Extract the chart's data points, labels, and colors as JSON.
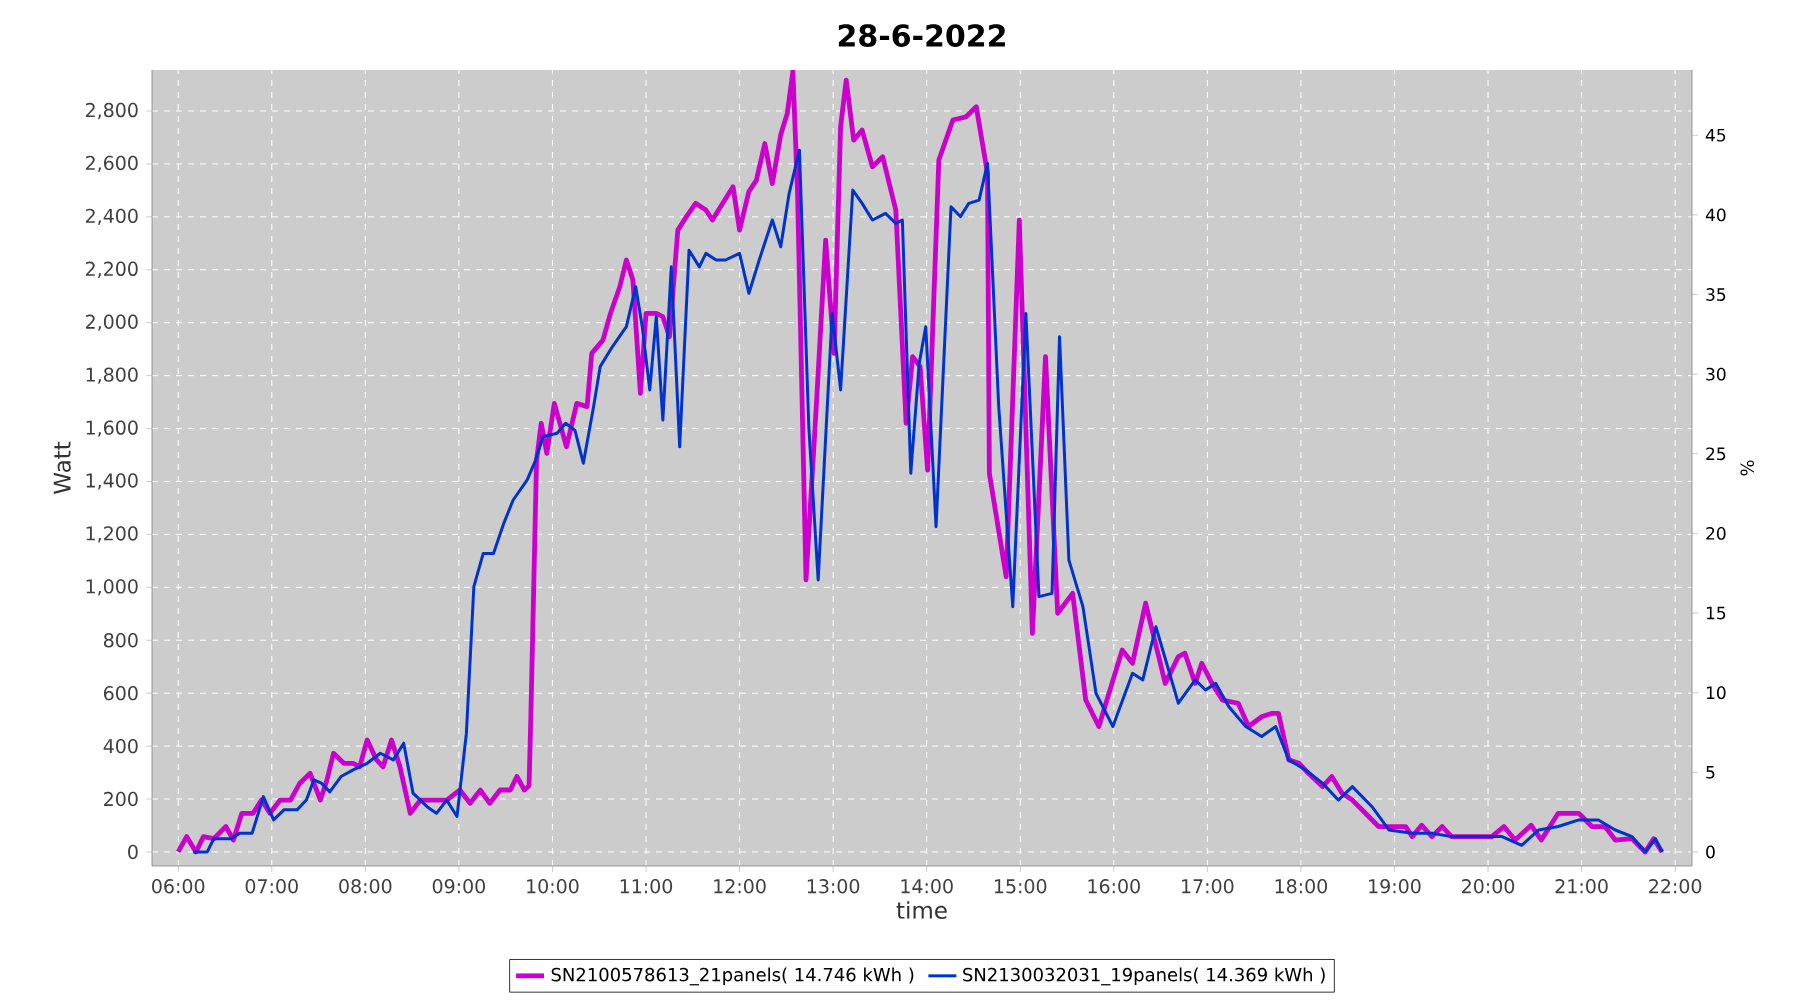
{
  "chart_data": {
    "type": "line",
    "title": "28-6-2022",
    "xlabel": "time",
    "ylabel": "Watt",
    "y2label": "%",
    "xlim": [
      5.72,
      22.18
    ],
    "ylim": [
      -53,
      2955
    ],
    "y2lim": [
      -0.88,
      49.1
    ],
    "xticks": [
      {
        "value": 6,
        "label": "06:00"
      },
      {
        "value": 7,
        "label": "07:00"
      },
      {
        "value": 8,
        "label": "08:00"
      },
      {
        "value": 9,
        "label": "09:00"
      },
      {
        "value": 10,
        "label": "10:00"
      },
      {
        "value": 11,
        "label": "11:00"
      },
      {
        "value": 12,
        "label": "12:00"
      },
      {
        "value": 13,
        "label": "13:00"
      },
      {
        "value": 14,
        "label": "14:00"
      },
      {
        "value": 15,
        "label": "15:00"
      },
      {
        "value": 16,
        "label": "16:00"
      },
      {
        "value": 17,
        "label": "17:00"
      },
      {
        "value": 18,
        "label": "18:00"
      },
      {
        "value": 19,
        "label": "19:00"
      },
      {
        "value": 20,
        "label": "20:00"
      },
      {
        "value": 21,
        "label": "21:00"
      },
      {
        "value": 22,
        "label": "22:00"
      }
    ],
    "yticks": [
      0,
      200,
      400,
      600,
      800,
      {
        "value": 1000,
        "label": "1,000"
      },
      {
        "value": 1200,
        "label": "1,200"
      },
      {
        "value": 1400,
        "label": "1,400"
      },
      {
        "value": 1600,
        "label": "1,600"
      },
      {
        "value": 1800,
        "label": "1,800"
      },
      {
        "value": 2000,
        "label": "2,000"
      },
      {
        "value": 2200,
        "label": "2,200"
      },
      {
        "value": 2400,
        "label": "2,400"
      },
      {
        "value": 2600,
        "label": "2,600"
      },
      {
        "value": 2800,
        "label": "2,800"
      }
    ],
    "y2ticks": [
      0,
      5,
      10,
      15,
      20,
      25,
      30,
      35,
      40,
      45
    ],
    "grid": true,
    "legend": "bottom",
    "line_style": "solid",
    "series": [
      {
        "name": "SN2100578613_21panels( 14.746 kWh )",
        "color": "#cc00cc",
        "x": [
          6.0,
          6.09,
          6.19,
          6.27,
          6.38,
          6.51,
          6.59,
          6.68,
          6.8,
          6.89,
          6.98,
          7.09,
          7.2,
          7.3,
          7.41,
          7.52,
          7.59,
          7.66,
          7.77,
          7.87,
          7.94,
          8.02,
          8.12,
          8.19,
          8.28,
          8.37,
          8.48,
          8.59,
          8.73,
          8.87,
          9.01,
          9.12,
          9.23,
          9.33,
          9.44,
          9.55,
          9.62,
          9.7,
          9.75,
          9.77,
          9.83,
          9.88,
          9.94,
          10.02,
          10.15,
          10.26,
          10.37,
          10.42,
          10.54,
          10.62,
          10.72,
          10.79,
          10.86,
          10.94,
          11.0,
          11.11,
          11.18,
          11.25,
          11.34,
          11.43,
          11.53,
          11.64,
          11.71,
          11.82,
          11.93,
          12.0,
          12.1,
          12.18,
          12.27,
          12.35,
          12.44,
          12.51,
          12.57,
          12.62,
          12.71,
          12.82,
          12.92,
          13.01,
          13.08,
          13.14,
          13.22,
          13.31,
          13.42,
          13.53,
          13.6,
          13.67,
          13.78,
          13.85,
          13.93,
          14.01,
          14.13,
          14.28,
          14.42,
          14.53,
          14.65,
          14.67,
          14.85,
          14.99,
          15.13,
          15.27,
          15.4,
          15.56,
          15.7,
          15.84,
          16.09,
          16.2,
          16.34,
          16.55,
          16.69,
          16.76,
          16.87,
          16.94,
          17.05,
          17.16,
          17.33,
          17.44,
          17.58,
          17.69,
          17.76,
          17.87,
          17.98,
          18.08,
          18.23,
          18.33,
          18.44,
          18.55,
          18.69,
          18.83,
          18.97,
          19.12,
          19.19,
          19.29,
          19.4,
          19.51,
          19.61,
          19.83,
          20.04,
          20.17,
          20.29,
          20.46,
          20.57,
          20.75,
          20.97,
          21.11,
          21.25,
          21.36,
          21.54,
          21.68,
          21.77,
          21.86
        ],
        "values": [
          0,
          58,
          0,
          58,
          50,
          96,
          45,
          146,
          146,
          196,
          146,
          196,
          196,
          260,
          297,
          196,
          272,
          373,
          335,
          335,
          322,
          423,
          348,
          322,
          423,
          322,
          146,
          196,
          196,
          196,
          234,
          184,
          234,
          184,
          234,
          234,
          285,
          234,
          250,
          524,
          1481,
          1620,
          1506,
          1695,
          1531,
          1695,
          1683,
          1884,
          1934,
          2035,
          2136,
          2237,
          2161,
          1733,
          2035,
          2035,
          2023,
          1947,
          2350,
          2400,
          2451,
          2426,
          2388,
          2451,
          2514,
          2350,
          2496,
          2539,
          2677,
          2526,
          2710,
          2791,
          2950,
          2489,
          1028,
          1683,
          2312,
          1884,
          2741,
          2917,
          2690,
          2728,
          2589,
          2627,
          2526,
          2426,
          1620,
          1872,
          1834,
          1443,
          2615,
          2766,
          2778,
          2816,
          2564,
          1431,
          1040,
          2388,
          826,
          1872,
          902,
          977,
          574,
          474,
          763,
          713,
          940,
          637,
          738,
          751,
          637,
          713,
          637,
          574,
          562,
          474,
          511,
          524,
          524,
          348,
          335,
          297,
          247,
          285,
          222,
          196,
          146,
          96,
          96,
          96,
          58,
          101,
          58,
          96,
          58,
          58,
          58,
          96,
          45,
          101,
          45,
          146,
          146,
          96,
          96,
          45,
          50,
          0,
          50,
          0
        ]
      },
      {
        "name": "SN2130032031_19panels( 14.369 kWh )",
        "color": "#0033cc",
        "x": [
          6.16,
          6.31,
          6.38,
          6.56,
          6.66,
          6.79,
          6.91,
          7.02,
          7.13,
          7.27,
          7.37,
          7.45,
          7.53,
          7.62,
          7.74,
          7.87,
          8.02,
          8.16,
          8.3,
          8.41,
          8.51,
          8.66,
          8.76,
          8.87,
          8.98,
          9.08,
          9.16,
          9.26,
          9.37,
          9.48,
          9.58,
          9.73,
          9.82,
          9.9,
          10.05,
          10.14,
          10.24,
          10.33,
          10.44,
          10.51,
          10.64,
          10.79,
          10.89,
          10.96,
          11.04,
          11.11,
          11.18,
          11.27,
          11.36,
          11.46,
          11.57,
          11.64,
          11.75,
          11.85,
          12.0,
          12.1,
          12.21,
          12.35,
          12.44,
          12.53,
          12.64,
          12.74,
          12.84,
          12.99,
          13.08,
          13.21,
          13.31,
          13.42,
          13.56,
          13.67,
          13.74,
          13.83,
          13.92,
          13.99,
          14.1,
          14.26,
          14.36,
          14.45,
          14.56,
          14.65,
          14.77,
          14.92,
          15.06,
          15.2,
          15.34,
          15.42,
          15.52,
          15.67,
          15.81,
          15.99,
          16.2,
          16.31,
          16.45,
          16.69,
          16.87,
          16.98,
          17.09,
          17.23,
          17.41,
          17.58,
          17.73,
          17.87,
          18.05,
          18.23,
          18.4,
          18.55,
          18.76,
          18.94,
          19.19,
          19.4,
          19.61,
          19.83,
          20.15,
          20.36,
          20.54,
          20.75,
          20.97,
          21.18,
          21.36,
          21.54,
          21.68,
          21.79,
          21.86
        ],
        "values": [
          0,
          0,
          50,
          50,
          71,
          71,
          209,
          121,
          159,
          159,
          196,
          272,
          260,
          227,
          285,
          310,
          335,
          373,
          348,
          411,
          222,
          171,
          146,
          196,
          134,
          448,
          1003,
          1128,
          1128,
          1242,
          1330,
          1406,
          1481,
          1569,
          1582,
          1620,
          1594,
          1469,
          1683,
          1834,
          1909,
          1985,
          2136,
          1985,
          1746,
          2023,
          1632,
          2211,
          1531,
          2274,
          2211,
          2262,
          2237,
          2237,
          2262,
          2111,
          2237,
          2388,
          2287,
          2489,
          2652,
          1607,
          1028,
          2035,
          1746,
          2501,
          2451,
          2388,
          2413,
          2375,
          2388,
          1431,
          1846,
          1985,
          1229,
          2438,
          2401,
          2451,
          2463,
          2602,
          1683,
          927,
          2035,
          965,
          977,
          1947,
          1103,
          927,
          599,
          474,
          675,
          650,
          851,
          562,
          650,
          612,
          637,
          549,
          474,
          436,
          474,
          348,
          310,
          260,
          196,
          247,
          171,
          83,
          71,
          71,
          58,
          58,
          58,
          25,
          83,
          96,
          121,
          121,
          83,
          58,
          0,
          50,
          0
        ]
      }
    ]
  }
}
